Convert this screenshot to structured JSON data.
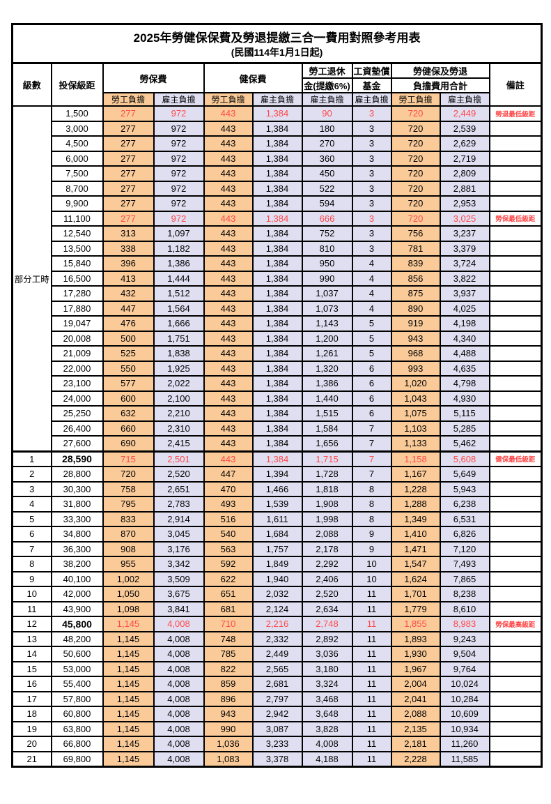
{
  "title": "2025年勞健保保費及勞退提繳三合一費用對照參考用表",
  "subtitle": "(民國114年1月1日起)",
  "colors": {
    "worker_share_bg": "#FACB99",
    "employer_share_bg": "#E0DFF2",
    "highlight_text": "#FF4848",
    "border": "#000000",
    "page_bg": "#FFFFFF"
  },
  "header": {
    "level": "級數",
    "salary": "投保級距",
    "labor_group": "勞保費",
    "health_group": "健保費",
    "pension_line1": "勞工退休",
    "pension_line2": "金(提繳6%)",
    "wage_fund_line1": "工資墊償",
    "wage_fund_line2": "基金",
    "total_line1": "勞健保及勞退",
    "total_line2": "負擔費用合計",
    "worker": "勞工負擔",
    "employer": "雇主負擔",
    "remark": "備註"
  },
  "part_time": {
    "label": "部分工時",
    "row_span": 23
  },
  "rows": [
    {
      "lv": "",
      "sal": "1,500",
      "lw": "277",
      "le": "972",
      "hw": "443",
      "he": "1,384",
      "pe": "90",
      "fu": "3",
      "tw": "720",
      "te": "2,449",
      "rm": "勞退最低級距",
      "hl": true,
      "bold": false
    },
    {
      "lv": "",
      "sal": "3,000",
      "lw": "277",
      "le": "972",
      "hw": "443",
      "he": "1,384",
      "pe": "180",
      "fu": "3",
      "tw": "720",
      "te": "2,539",
      "rm": "",
      "hl": false,
      "bold": false
    },
    {
      "lv": "",
      "sal": "4,500",
      "lw": "277",
      "le": "972",
      "hw": "443",
      "he": "1,384",
      "pe": "270",
      "fu": "3",
      "tw": "720",
      "te": "2,629",
      "rm": "",
      "hl": false,
      "bold": false
    },
    {
      "lv": "",
      "sal": "6,000",
      "lw": "277",
      "le": "972",
      "hw": "443",
      "he": "1,384",
      "pe": "360",
      "fu": "3",
      "tw": "720",
      "te": "2,719",
      "rm": "",
      "hl": false,
      "bold": false
    },
    {
      "lv": "",
      "sal": "7,500",
      "lw": "277",
      "le": "972",
      "hw": "443",
      "he": "1,384",
      "pe": "450",
      "fu": "3",
      "tw": "720",
      "te": "2,809",
      "rm": "",
      "hl": false,
      "bold": false
    },
    {
      "lv": "",
      "sal": "8,700",
      "lw": "277",
      "le": "972",
      "hw": "443",
      "he": "1,384",
      "pe": "522",
      "fu": "3",
      "tw": "720",
      "te": "2,881",
      "rm": "",
      "hl": false,
      "bold": false
    },
    {
      "lv": "",
      "sal": "9,900",
      "lw": "277",
      "le": "972",
      "hw": "443",
      "he": "1,384",
      "pe": "594",
      "fu": "3",
      "tw": "720",
      "te": "2,953",
      "rm": "",
      "hl": false,
      "bold": false
    },
    {
      "lv": "",
      "sal": "11,100",
      "lw": "277",
      "le": "972",
      "hw": "443",
      "he": "1,384",
      "pe": "666",
      "fu": "3",
      "tw": "720",
      "te": "3,025",
      "rm": "勞保最低級距",
      "hl": true,
      "bold": false
    },
    {
      "lv": "",
      "sal": "12,540",
      "lw": "313",
      "le": "1,097",
      "hw": "443",
      "he": "1,384",
      "pe": "752",
      "fu": "3",
      "tw": "756",
      "te": "3,237",
      "rm": "",
      "hl": false,
      "bold": false
    },
    {
      "lv": "",
      "sal": "13,500",
      "lw": "338",
      "le": "1,182",
      "hw": "443",
      "he": "1,384",
      "pe": "810",
      "fu": "3",
      "tw": "781",
      "te": "3,379",
      "rm": "",
      "hl": false,
      "bold": false
    },
    {
      "lv": "",
      "sal": "15,840",
      "lw": "396",
      "le": "1,386",
      "hw": "443",
      "he": "1,384",
      "pe": "950",
      "fu": "4",
      "tw": "839",
      "te": "3,724",
      "rm": "",
      "hl": false,
      "bold": false
    },
    {
      "lv": "",
      "sal": "16,500",
      "lw": "413",
      "le": "1,444",
      "hw": "443",
      "he": "1,384",
      "pe": "990",
      "fu": "4",
      "tw": "856",
      "te": "3,822",
      "rm": "",
      "hl": false,
      "bold": false
    },
    {
      "lv": "",
      "sal": "17,280",
      "lw": "432",
      "le": "1,512",
      "hw": "443",
      "he": "1,384",
      "pe": "1,037",
      "fu": "4",
      "tw": "875",
      "te": "3,937",
      "rm": "",
      "hl": false,
      "bold": false
    },
    {
      "lv": "",
      "sal": "17,880",
      "lw": "447",
      "le": "1,564",
      "hw": "443",
      "he": "1,384",
      "pe": "1,073",
      "fu": "4",
      "tw": "890",
      "te": "4,025",
      "rm": "",
      "hl": false,
      "bold": false
    },
    {
      "lv": "",
      "sal": "19,047",
      "lw": "476",
      "le": "1,666",
      "hw": "443",
      "he": "1,384",
      "pe": "1,143",
      "fu": "5",
      "tw": "919",
      "te": "4,198",
      "rm": "",
      "hl": false,
      "bold": false
    },
    {
      "lv": "",
      "sal": "20,008",
      "lw": "500",
      "le": "1,751",
      "hw": "443",
      "he": "1,384",
      "pe": "1,200",
      "fu": "5",
      "tw": "943",
      "te": "4,340",
      "rm": "",
      "hl": false,
      "bold": false
    },
    {
      "lv": "",
      "sal": "21,009",
      "lw": "525",
      "le": "1,838",
      "hw": "443",
      "he": "1,384",
      "pe": "1,261",
      "fu": "5",
      "tw": "968",
      "te": "4,488",
      "rm": "",
      "hl": false,
      "bold": false
    },
    {
      "lv": "",
      "sal": "22,000",
      "lw": "550",
      "le": "1,925",
      "hw": "443",
      "he": "1,384",
      "pe": "1,320",
      "fu": "6",
      "tw": "993",
      "te": "4,635",
      "rm": "",
      "hl": false,
      "bold": false
    },
    {
      "lv": "",
      "sal": "23,100",
      "lw": "577",
      "le": "2,022",
      "hw": "443",
      "he": "1,384",
      "pe": "1,386",
      "fu": "6",
      "tw": "1,020",
      "te": "4,798",
      "rm": "",
      "hl": false,
      "bold": false
    },
    {
      "lv": "",
      "sal": "24,000",
      "lw": "600",
      "le": "2,100",
      "hw": "443",
      "he": "1,384",
      "pe": "1,440",
      "fu": "6",
      "tw": "1,043",
      "te": "4,930",
      "rm": "",
      "hl": false,
      "bold": false
    },
    {
      "lv": "",
      "sal": "25,250",
      "lw": "632",
      "le": "2,210",
      "hw": "443",
      "he": "1,384",
      "pe": "1,515",
      "fu": "6",
      "tw": "1,075",
      "te": "5,115",
      "rm": "",
      "hl": false,
      "bold": false
    },
    {
      "lv": "",
      "sal": "26,400",
      "lw": "660",
      "le": "2,310",
      "hw": "443",
      "he": "1,384",
      "pe": "1,584",
      "fu": "7",
      "tw": "1,103",
      "te": "5,285",
      "rm": "",
      "hl": false,
      "bold": false
    },
    {
      "lv": "",
      "sal": "27,600",
      "lw": "690",
      "le": "2,415",
      "hw": "443",
      "he": "1,384",
      "pe": "1,656",
      "fu": "7",
      "tw": "1,133",
      "te": "5,462",
      "rm": "",
      "hl": false,
      "bold": false
    },
    {
      "lv": "1",
      "sal": "28,590",
      "lw": "715",
      "le": "2,501",
      "hw": "443",
      "he": "1,384",
      "pe": "1,715",
      "fu": "7",
      "tw": "1,158",
      "te": "5,608",
      "rm": "健保最低級距",
      "hl": true,
      "bold": true
    },
    {
      "lv": "2",
      "sal": "28,800",
      "lw": "720",
      "le": "2,520",
      "hw": "447",
      "he": "1,394",
      "pe": "1,728",
      "fu": "7",
      "tw": "1,167",
      "te": "5,649",
      "rm": "",
      "hl": false,
      "bold": false
    },
    {
      "lv": "3",
      "sal": "30,300",
      "lw": "758",
      "le": "2,651",
      "hw": "470",
      "he": "1,466",
      "pe": "1,818",
      "fu": "8",
      "tw": "1,228",
      "te": "5,943",
      "rm": "",
      "hl": false,
      "bold": false
    },
    {
      "lv": "4",
      "sal": "31,800",
      "lw": "795",
      "le": "2,783",
      "hw": "493",
      "he": "1,539",
      "pe": "1,908",
      "fu": "8",
      "tw": "1,288",
      "te": "6,238",
      "rm": "",
      "hl": false,
      "bold": false
    },
    {
      "lv": "5",
      "sal": "33,300",
      "lw": "833",
      "le": "2,914",
      "hw": "516",
      "he": "1,611",
      "pe": "1,998",
      "fu": "8",
      "tw": "1,349",
      "te": "6,531",
      "rm": "",
      "hl": false,
      "bold": false
    },
    {
      "lv": "6",
      "sal": "34,800",
      "lw": "870",
      "le": "3,045",
      "hw": "540",
      "he": "1,684",
      "pe": "2,088",
      "fu": "9",
      "tw": "1,410",
      "te": "6,826",
      "rm": "",
      "hl": false,
      "bold": false
    },
    {
      "lv": "7",
      "sal": "36,300",
      "lw": "908",
      "le": "3,176",
      "hw": "563",
      "he": "1,757",
      "pe": "2,178",
      "fu": "9",
      "tw": "1,471",
      "te": "7,120",
      "rm": "",
      "hl": false,
      "bold": false
    },
    {
      "lv": "8",
      "sal": "38,200",
      "lw": "955",
      "le": "3,342",
      "hw": "592",
      "he": "1,849",
      "pe": "2,292",
      "fu": "10",
      "tw": "1,547",
      "te": "7,493",
      "rm": "",
      "hl": false,
      "bold": false
    },
    {
      "lv": "9",
      "sal": "40,100",
      "lw": "1,002",
      "le": "3,509",
      "hw": "622",
      "he": "1,940",
      "pe": "2,406",
      "fu": "10",
      "tw": "1,624",
      "te": "7,865",
      "rm": "",
      "hl": false,
      "bold": false
    },
    {
      "lv": "10",
      "sal": "42,000",
      "lw": "1,050",
      "le": "3,675",
      "hw": "651",
      "he": "2,032",
      "pe": "2,520",
      "fu": "11",
      "tw": "1,701",
      "te": "8,238",
      "rm": "",
      "hl": false,
      "bold": false
    },
    {
      "lv": "11",
      "sal": "43,900",
      "lw": "1,098",
      "le": "3,841",
      "hw": "681",
      "he": "2,124",
      "pe": "2,634",
      "fu": "11",
      "tw": "1,779",
      "te": "8,610",
      "rm": "",
      "hl": false,
      "bold": false
    },
    {
      "lv": "12",
      "sal": "45,800",
      "lw": "1,145",
      "le": "4,008",
      "hw": "710",
      "he": "2,216",
      "pe": "2,748",
      "fu": "11",
      "tw": "1,855",
      "te": "8,983",
      "rm": "勞保最高級距",
      "hl": true,
      "bold": true
    },
    {
      "lv": "13",
      "sal": "48,200",
      "lw": "1,145",
      "le": "4,008",
      "hw": "748",
      "he": "2,332",
      "pe": "2,892",
      "fu": "11",
      "tw": "1,893",
      "te": "9,243",
      "rm": "",
      "hl": false,
      "bold": false
    },
    {
      "lv": "14",
      "sal": "50,600",
      "lw": "1,145",
      "le": "4,008",
      "hw": "785",
      "he": "2,449",
      "pe": "3,036",
      "fu": "11",
      "tw": "1,930",
      "te": "9,504",
      "rm": "",
      "hl": false,
      "bold": false
    },
    {
      "lv": "15",
      "sal": "53,000",
      "lw": "1,145",
      "le": "4,008",
      "hw": "822",
      "he": "2,565",
      "pe": "3,180",
      "fu": "11",
      "tw": "1,967",
      "te": "9,764",
      "rm": "",
      "hl": false,
      "bold": false
    },
    {
      "lv": "16",
      "sal": "55,400",
      "lw": "1,145",
      "le": "4,008",
      "hw": "859",
      "he": "2,681",
      "pe": "3,324",
      "fu": "11",
      "tw": "2,004",
      "te": "10,024",
      "rm": "",
      "hl": false,
      "bold": false
    },
    {
      "lv": "17",
      "sal": "57,800",
      "lw": "1,145",
      "le": "4,008",
      "hw": "896",
      "he": "2,797",
      "pe": "3,468",
      "fu": "11",
      "tw": "2,041",
      "te": "10,284",
      "rm": "",
      "hl": false,
      "bold": false
    },
    {
      "lv": "18",
      "sal": "60,800",
      "lw": "1,145",
      "le": "4,008",
      "hw": "943",
      "he": "2,942",
      "pe": "3,648",
      "fu": "11",
      "tw": "2,088",
      "te": "10,609",
      "rm": "",
      "hl": false,
      "bold": false
    },
    {
      "lv": "19",
      "sal": "63,800",
      "lw": "1,145",
      "le": "4,008",
      "hw": "990",
      "he": "3,087",
      "pe": "3,828",
      "fu": "11",
      "tw": "2,135",
      "te": "10,934",
      "rm": "",
      "hl": false,
      "bold": false
    },
    {
      "lv": "20",
      "sal": "66,800",
      "lw": "1,145",
      "le": "4,008",
      "hw": "1,036",
      "he": "3,233",
      "pe": "4,008",
      "fu": "11",
      "tw": "2,181",
      "te": "11,260",
      "rm": "",
      "hl": false,
      "bold": false
    },
    {
      "lv": "21",
      "sal": "69,800",
      "lw": "1,145",
      "le": "4,008",
      "hw": "1,083",
      "he": "3,378",
      "pe": "4,188",
      "fu": "11",
      "tw": "2,228",
      "te": "11,585",
      "rm": "",
      "hl": false,
      "bold": false
    }
  ]
}
